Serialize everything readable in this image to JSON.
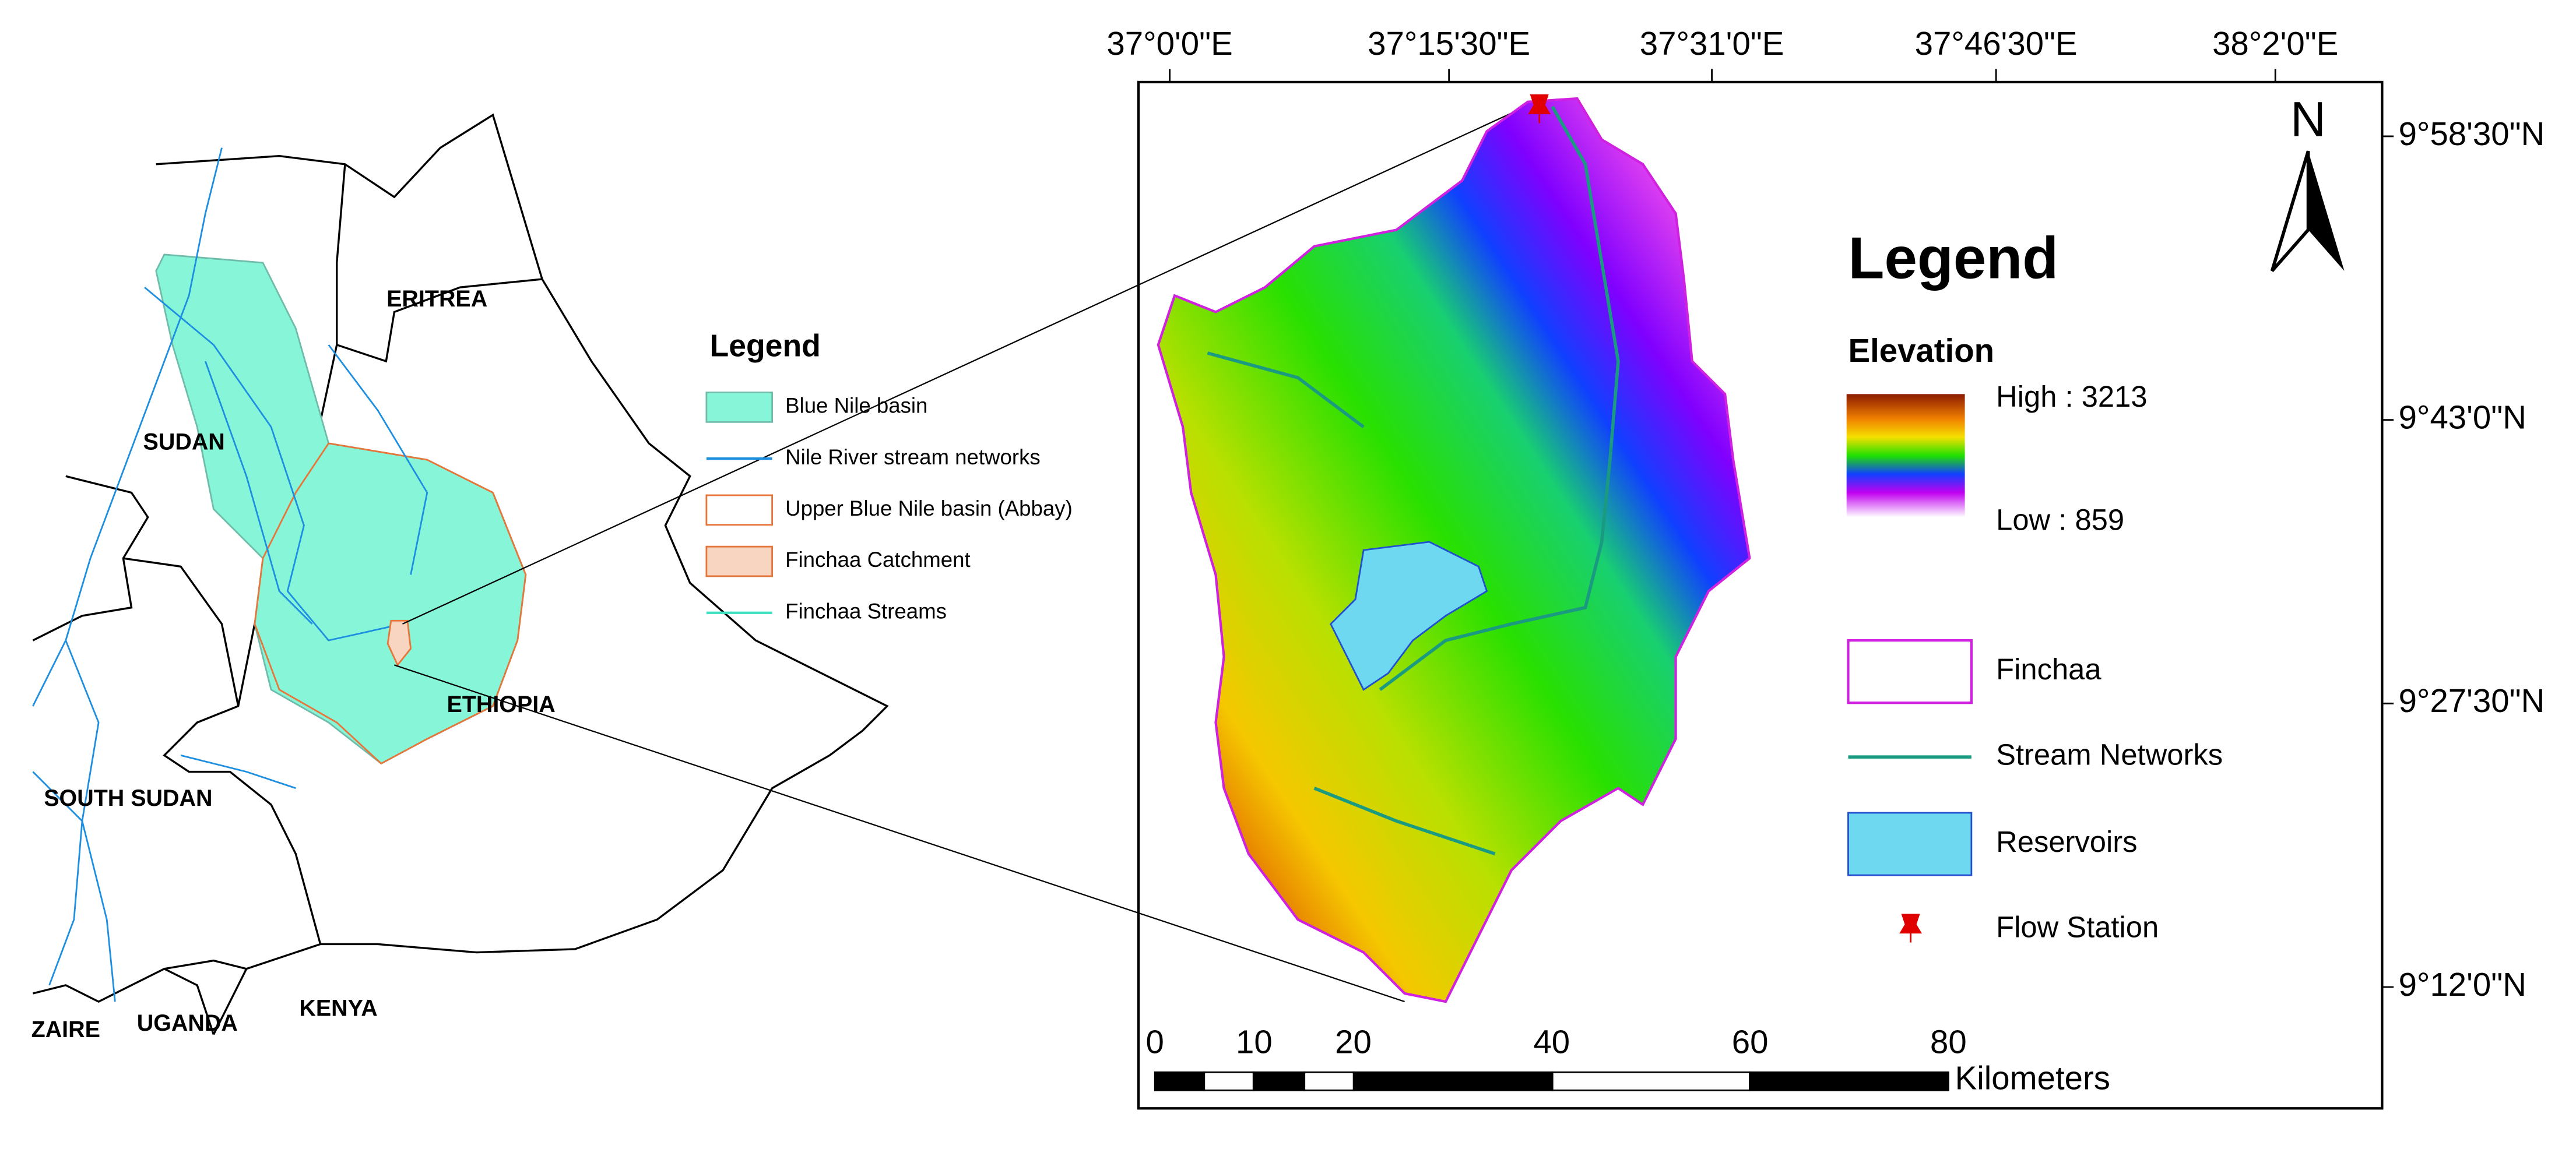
{
  "left_map": {
    "countries": [
      "ERITREA",
      "SUDAN",
      "ETHIOPIA",
      "SOUTH SUDAN",
      "KENYA",
      "UGANDA",
      "ZAIRE"
    ],
    "legend": {
      "title": "Legend",
      "items": [
        "Blue Nile basin",
        "Nile River stream networks",
        "Upper Blue Nile basin (Abbay)",
        "Finchaa Catchment",
        "Finchaa Streams"
      ]
    }
  },
  "right_map": {
    "longitudes": [
      "37°0'0\"E",
      "37°15'30\"E",
      "37°31'0\"E",
      "37°46'30\"E",
      "38°2'0\"E"
    ],
    "latitudes": [
      "9°58'30\"N",
      "9°43'0\"N",
      "9°27'30\"N",
      "9°12'0\"N"
    ],
    "north": "N",
    "legend": {
      "title": "Legend",
      "elevation": {
        "title": "Elevation",
        "high": "High : 3213",
        "low": "Low : 859"
      },
      "items": [
        "Finchaa",
        "Stream Networks",
        "Reservoirs",
        "Flow Station"
      ]
    },
    "scale_bar": {
      "ticks": [
        0,
        10,
        20,
        40,
        60,
        80
      ],
      "unit": "Kilometers"
    }
  }
}
